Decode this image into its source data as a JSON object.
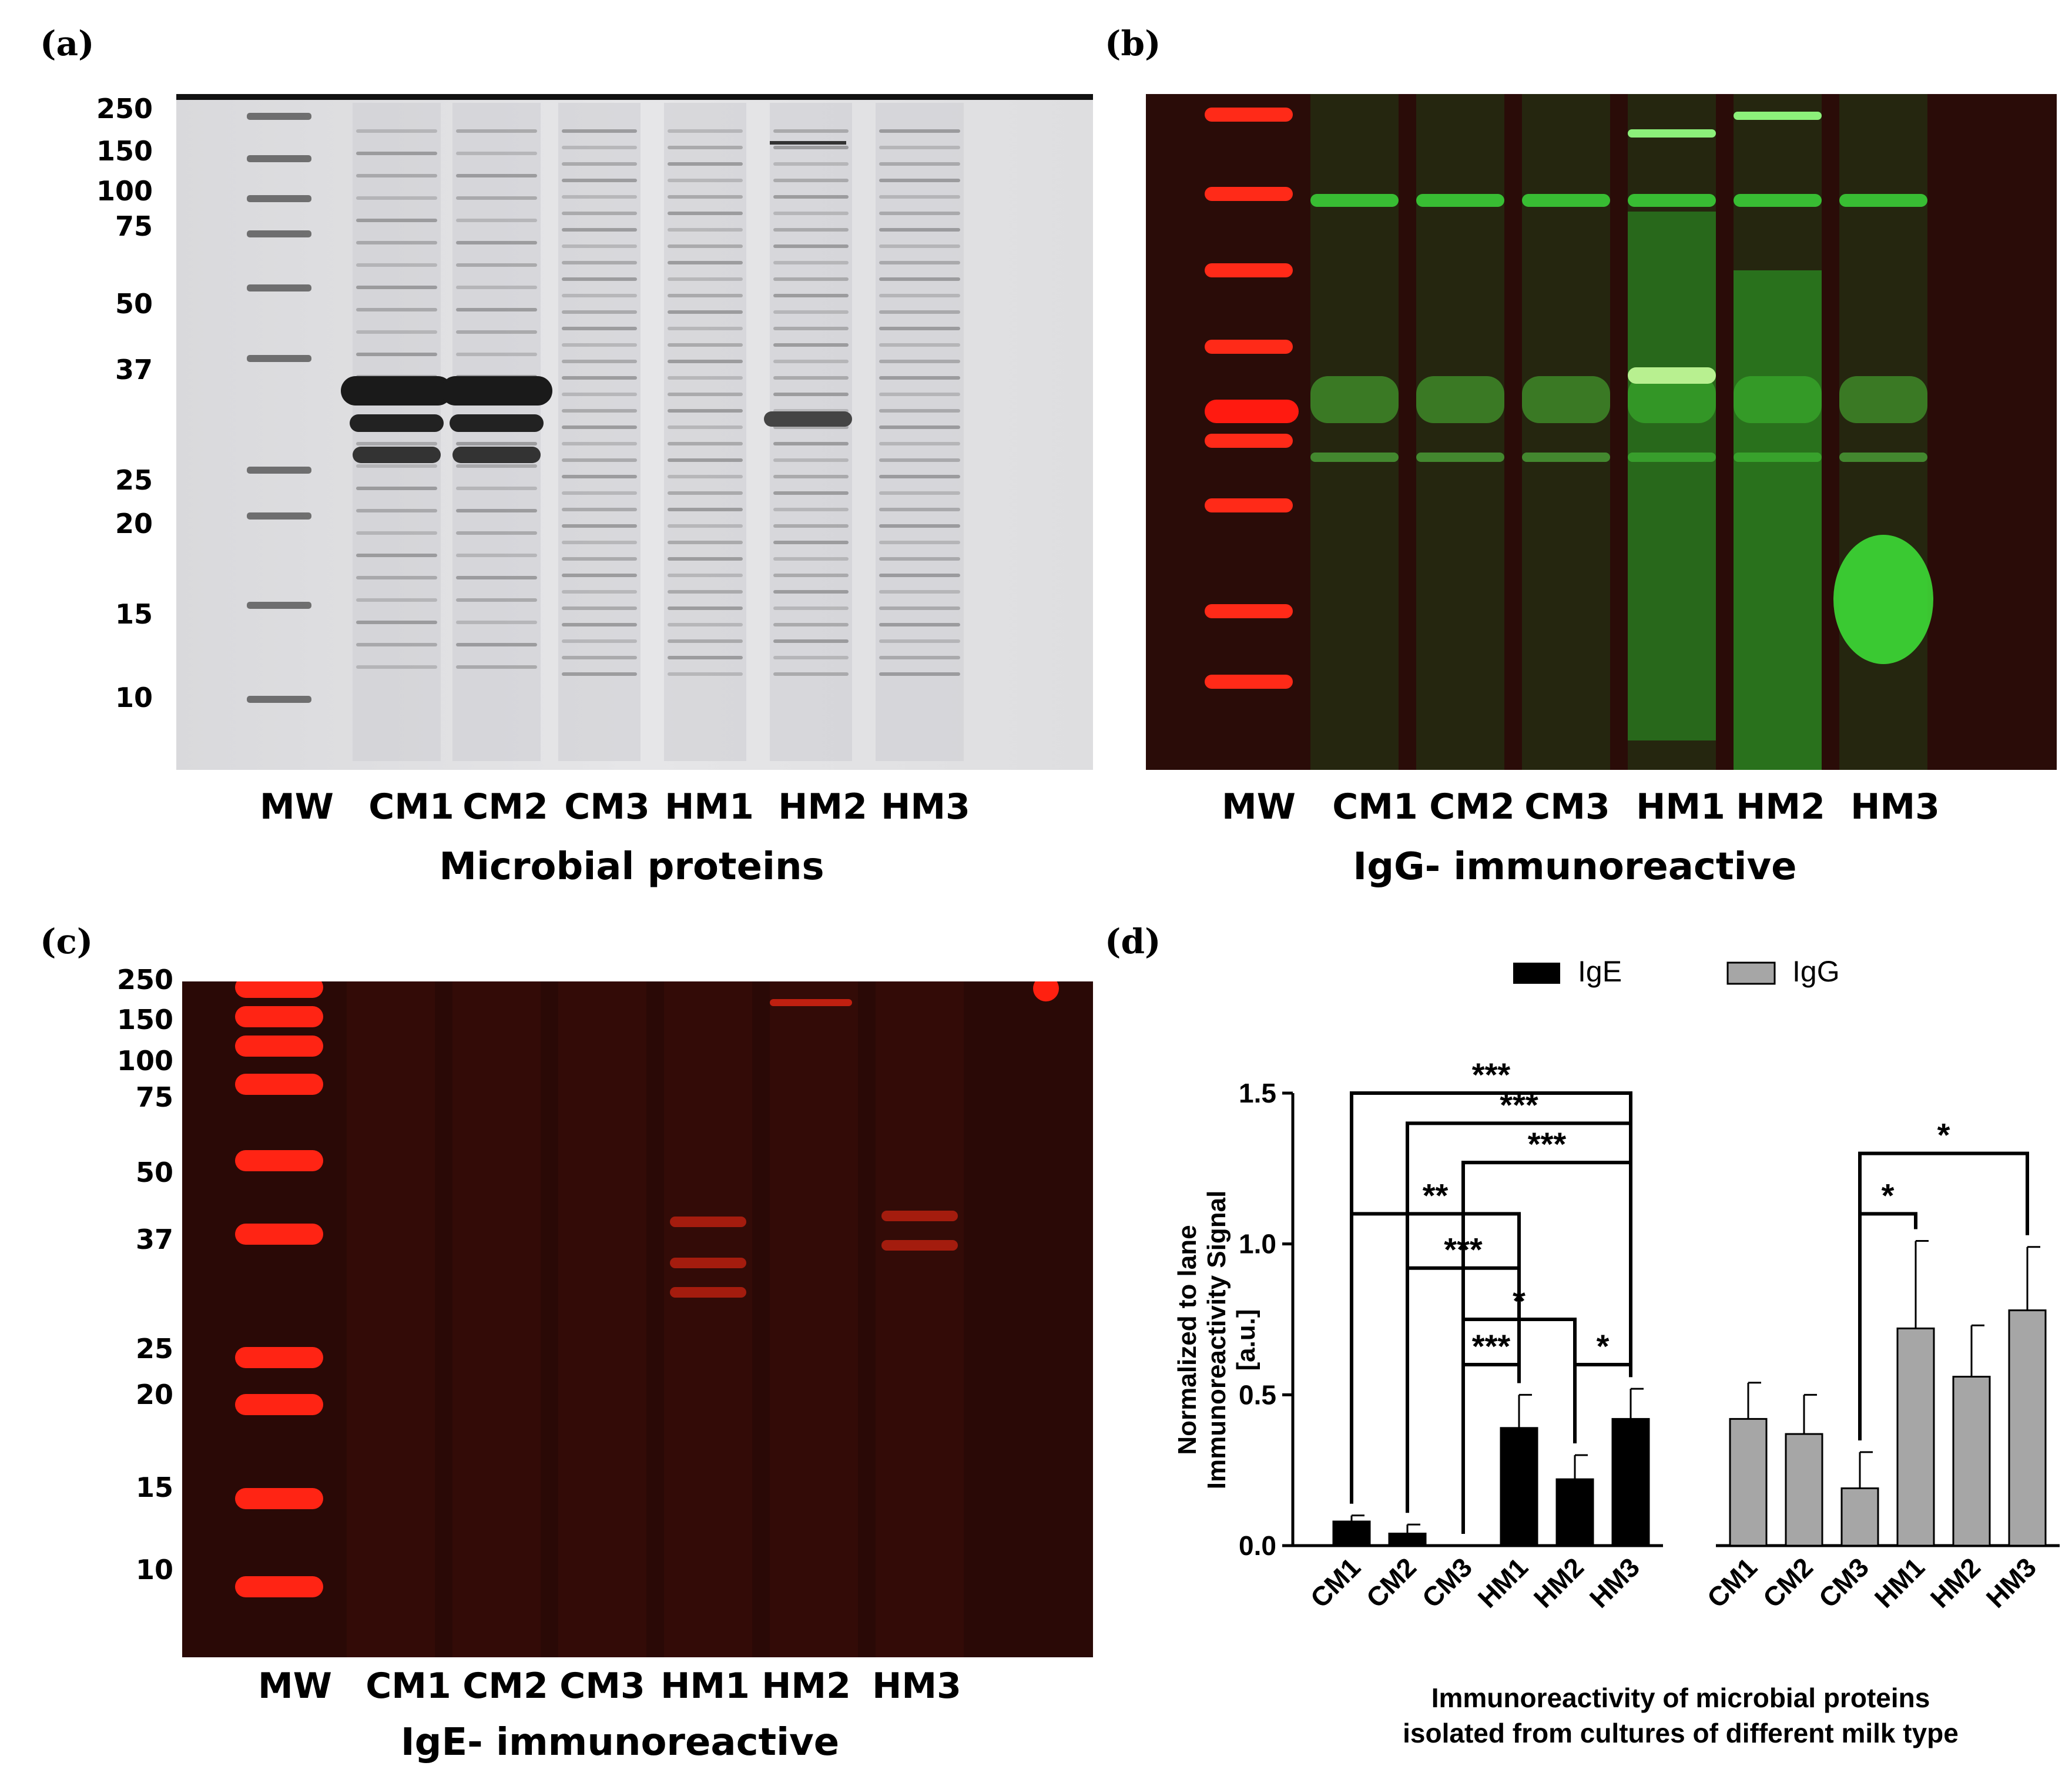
{
  "panels": {
    "a": {
      "label": "(a)",
      "caption": "Microbial proteins",
      "mw_ticks": [
        "250",
        "150",
        "100",
        "75",
        "50",
        "37",
        "25",
        "20",
        "15",
        "10"
      ],
      "lanes": [
        "MW",
        "CM1",
        "CM2",
        "CM3",
        "HM1",
        "HM2",
        "HM3"
      ]
    },
    "b": {
      "label": "(b)",
      "caption": "IgG- immunoreactive",
      "lanes": [
        "MW",
        "CM1",
        "CM2",
        "CM3",
        "HM1",
        "HM2",
        "HM3"
      ]
    },
    "c": {
      "label": "(c)",
      "caption": "IgE- immunoreactive",
      "mw_ticks": [
        "250",
        "150",
        "100",
        "75",
        "50",
        "37",
        "25",
        "20",
        "15",
        "10"
      ],
      "lanes": [
        "MW",
        "CM1",
        "CM2",
        "CM3",
        "HM1",
        "HM2",
        "HM3"
      ]
    },
    "d": {
      "label": "(d)"
    }
  },
  "colors": {
    "ige_bar": "#000000",
    "igg_bar": "#a6a6a6",
    "gel_bg": "#e4e4e6",
    "blot_bg": "#2a0c08",
    "ladder_red": "#ff1a10",
    "green_band": "#3cd83a"
  },
  "chart_data": {
    "type": "bar",
    "ylabel_line1": "Normalized to lane",
    "ylabel_line2": "Immunoreactivity Signal",
    "ylabel_line3": "[a.u.]",
    "xlabel_line1": "Immunoreactivity of microbial proteins",
    "xlabel_line2": "isolated from cultures of different milk type",
    "ylim": [
      0,
      1.5
    ],
    "yticks": [
      "0.0",
      "0.5",
      "1.0",
      "1.5"
    ],
    "legend": [
      {
        "name": "IgE"
      },
      {
        "name": "IgG"
      }
    ],
    "series": [
      {
        "name": "IgE",
        "categories": [
          "CM1",
          "CM2",
          "CM3",
          "HM1",
          "HM2",
          "HM3"
        ],
        "values": [
          0.08,
          0.04,
          0.0,
          0.39,
          0.22,
          0.42
        ],
        "errors": [
          0.02,
          0.03,
          0.0,
          0.11,
          0.08,
          0.1
        ]
      },
      {
        "name": "IgG",
        "categories": [
          "CM1",
          "CM2",
          "CM3",
          "HM1",
          "HM2",
          "HM3"
        ],
        "values": [
          0.42,
          0.37,
          0.19,
          0.72,
          0.56,
          0.78
        ],
        "errors": [
          0.12,
          0.13,
          0.12,
          0.29,
          0.17,
          0.21
        ]
      }
    ],
    "significance": [
      {
        "from": 0,
        "to": 5,
        "level": 1.5,
        "label": "***"
      },
      {
        "from": 1,
        "to": 5,
        "level": 1.4,
        "label": "***"
      },
      {
        "from": 2,
        "to": 5,
        "level": 1.27,
        "label": "***"
      },
      {
        "from": 0,
        "to": 3,
        "level": 1.1,
        "label": "**"
      },
      {
        "from": 1,
        "to": 3,
        "level": 0.92,
        "label": "***"
      },
      {
        "from": 2,
        "to": 4,
        "level": 0.75,
        "label": "*"
      },
      {
        "from": 2,
        "to": 3,
        "level": 0.6,
        "label": "***"
      },
      {
        "from": 4,
        "to": 5,
        "level": 0.6,
        "label": "*"
      },
      {
        "from": 8,
        "to": 9,
        "level": 1.1,
        "label": "*"
      },
      {
        "from": 8,
        "to": 11,
        "level": 1.3,
        "label": "*"
      }
    ]
  }
}
